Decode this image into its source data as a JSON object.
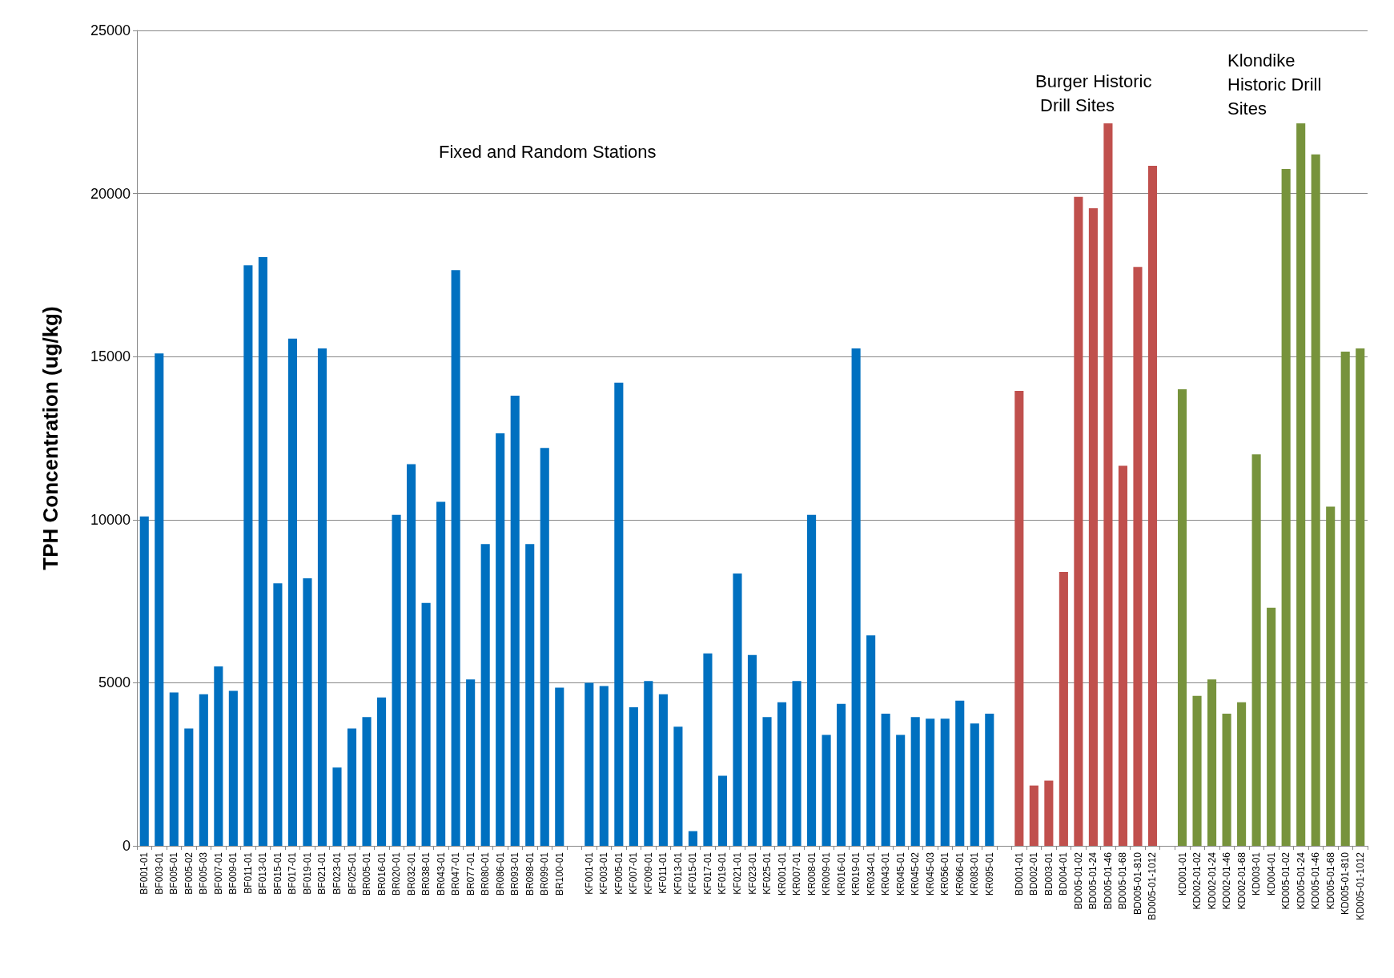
{
  "chart_data": {
    "type": "bar",
    "ylabel": "TPH Concentration (ug/kg)",
    "categories": [
      "BF001-01",
      "BF003-01",
      "BF005-01",
      "BF005-02",
      "BF005-03",
      "BF007-01",
      "BF009-01",
      "BF011-01",
      "BF013-01",
      "BF015-01",
      "BF017-01",
      "BF019-01",
      "BF021-01",
      "BF023-01",
      "BF025-01",
      "BR005-01",
      "BR016-01",
      "BR020-01",
      "BR032-01",
      "BR038-01",
      "BR043-01",
      "BR047-01",
      "BR077-01",
      "BR080-01",
      "BR086-01",
      "BR093-01",
      "BR098-01",
      "BR099-01",
      "BR100-01",
      null,
      "KF001-01",
      "KF003-01",
      "KF005-01",
      "KF007-01",
      "KF009-01",
      "KF011-01",
      "KF013-01",
      "KF015-01",
      "KF017-01",
      "KF019-01",
      "KF021-01",
      "KF023-01",
      "KF025-01",
      "KR001-01",
      "KR007-01",
      "KR008-01",
      "KR009-01",
      "KR016-01",
      "KR019-01",
      "KR034-01",
      "KR043-01",
      "KR045-01",
      "KR045-02",
      "KR045-03",
      "KR056-01",
      "KR066-01",
      "KR083-01",
      "KR095-01",
      null,
      "BD001-01",
      "BD002-01",
      "BD003-01",
      "BD004-01",
      "BD005-01-02",
      "BD005-01-24",
      "BD005-01-46",
      "BD005-01-68",
      "BD005-01-810",
      "BD005-01-1012",
      null,
      "KD001-01",
      "KD002-01-02",
      "KD002-01-24",
      "KD002-01-46",
      "KD002-01-68",
      "KD003-01",
      "KD004-01",
      "KD005-01-02",
      "KD005-01-24",
      "KD005-01-46",
      "KD005-01-68",
      "KD005-01-810",
      "KD005-01-1012"
    ],
    "values": [
      10100,
      15100,
      4700,
      3600,
      4650,
      5500,
      4750,
      17800,
      18050,
      8050,
      15550,
      8200,
      15250,
      2400,
      3600,
      3950,
      4550,
      10150,
      11700,
      7450,
      10550,
      17650,
      5100,
      9250,
      12650,
      13800,
      9250,
      12200,
      4850,
      null,
      5000,
      4900,
      14200,
      4250,
      5050,
      4650,
      3650,
      450,
      5900,
      2150,
      8350,
      5850,
      3950,
      4400,
      5050,
      10150,
      3400,
      4350,
      15250,
      6450,
      4050,
      3400,
      3950,
      3900,
      3900,
      4450,
      3750,
      4050,
      null,
      13950,
      1850,
      2000,
      8400,
      19900,
      19550,
      22150,
      11650,
      17750,
      20850,
      null,
      14000,
      4600,
      5100,
      4050,
      4400,
      12000,
      7300,
      20750,
      22150,
      21200,
      10400,
      15150,
      15250
    ],
    "colors": [
      "#0070c0",
      "#0070c0",
      "#0070c0",
      "#0070c0",
      "#0070c0",
      "#0070c0",
      "#0070c0",
      "#0070c0",
      "#0070c0",
      "#0070c0",
      "#0070c0",
      "#0070c0",
      "#0070c0",
      "#0070c0",
      "#0070c0",
      "#0070c0",
      "#0070c0",
      "#0070c0",
      "#0070c0",
      "#0070c0",
      "#0070c0",
      "#0070c0",
      "#0070c0",
      "#0070c0",
      "#0070c0",
      "#0070c0",
      "#0070c0",
      "#0070c0",
      "#0070c0",
      null,
      "#0070c0",
      "#0070c0",
      "#0070c0",
      "#0070c0",
      "#0070c0",
      "#0070c0",
      "#0070c0",
      "#0070c0",
      "#0070c0",
      "#0070c0",
      "#0070c0",
      "#0070c0",
      "#0070c0",
      "#0070c0",
      "#0070c0",
      "#0070c0",
      "#0070c0",
      "#0070c0",
      "#0070c0",
      "#0070c0",
      "#0070c0",
      "#0070c0",
      "#0070c0",
      "#0070c0",
      "#0070c0",
      "#0070c0",
      "#0070c0",
      "#0070c0",
      null,
      "#c0504d",
      "#c0504d",
      "#c0504d",
      "#c0504d",
      "#c0504d",
      "#c0504d",
      "#c0504d",
      "#c0504d",
      "#c0504d",
      "#c0504d",
      null,
      "#77933c",
      "#77933c",
      "#77933c",
      "#77933c",
      "#77933c",
      "#77933c",
      "#77933c",
      "#77933c",
      "#77933c",
      "#77933c",
      "#77933c",
      "#77933c",
      "#77933c"
    ],
    "ylim": [
      0,
      25000
    ],
    "yticks": [
      0,
      5000,
      10000,
      15000,
      20000,
      25000
    ],
    "grid": "y",
    "annotations": [
      "Fixed and Random Stations",
      "Burger Historic Drill Sites",
      "Klondike Historic Drill Sites"
    ]
  }
}
